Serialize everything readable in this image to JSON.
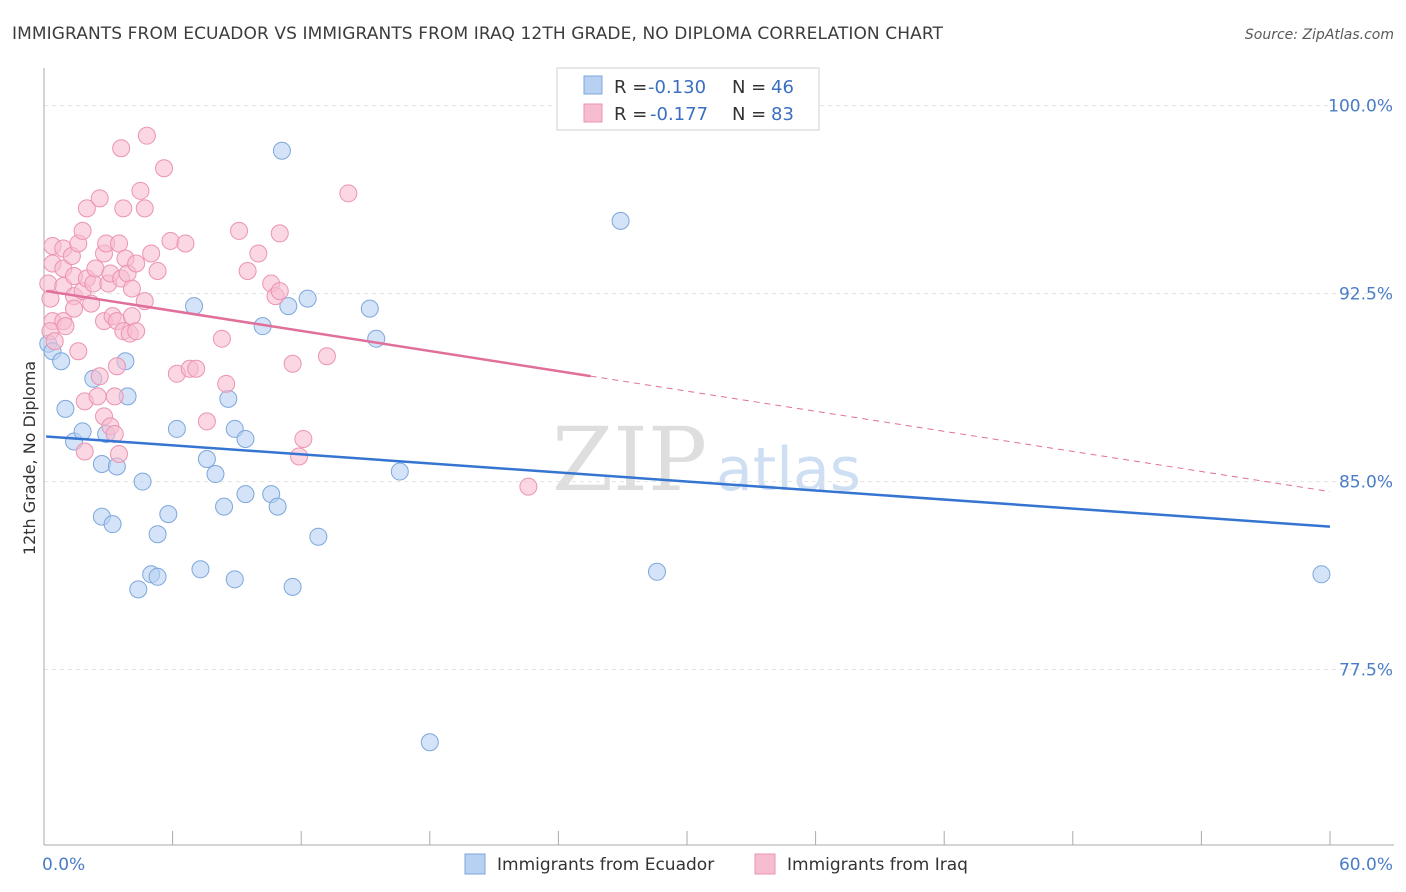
{
  "chart_data": {
    "type": "scatter",
    "title": "IMMIGRANTS FROM ECUADOR VS IMMIGRANTS FROM IRAQ 12TH GRADE, NO DIPLOMA CORRELATION CHART",
    "source": "Source: ZipAtlas.com",
    "ylabel": "12th Grade, No Diploma",
    "xlabel": "",
    "xlim": [
      0,
      60
    ],
    "ylim": [
      70.5,
      101.5
    ],
    "x_tick_labels": [
      {
        "value": 0,
        "label": "0.0%"
      },
      {
        "value": 60,
        "label": "60.0%"
      }
    ],
    "y_tick_labels": [
      {
        "value": 100,
        "label": "100.0%"
      },
      {
        "value": 92.5,
        "label": "92.5%"
      },
      {
        "value": 85,
        "label": "85.0%"
      },
      {
        "value": 77.5,
        "label": "77.5%"
      }
    ],
    "watermark": {
      "part1": "ZIP",
      "part2": "atlas"
    },
    "legend": {
      "r_label": "R =",
      "n_label": "N =",
      "entries": [
        {
          "r_value": "-0.130",
          "n_value": "46"
        },
        {
          "r_value": "-0.177",
          "n_value": "83"
        }
      ]
    },
    "series": [
      {
        "name": "Immigrants from Ecuador",
        "fill": "#b8d0f1",
        "stroke": "#7da7dd",
        "line_color": "#3575d1",
        "trend": {
          "x0": 0.1,
          "y0": 86.8,
          "x1": 60,
          "y1": 83.2,
          "dash_from": null
        },
        "points": [
          [
            0.2,
            90.5
          ],
          [
            0.4,
            90.2
          ],
          [
            0.8,
            89.8
          ],
          [
            1.0,
            87.9
          ],
          [
            1.4,
            86.6
          ],
          [
            1.8,
            87.0
          ],
          [
            2.3,
            89.1
          ],
          [
            2.9,
            86.9
          ],
          [
            2.7,
            85.7
          ],
          [
            3.4,
            85.6
          ],
          [
            3.8,
            89.8
          ],
          [
            3.9,
            88.4
          ],
          [
            2.7,
            83.6
          ],
          [
            3.2,
            83.3
          ],
          [
            4.6,
            85.0
          ],
          [
            5.3,
            82.9
          ],
          [
            5.8,
            83.7
          ],
          [
            4.4,
            80.7
          ],
          [
            5.0,
            81.3
          ],
          [
            5.3,
            81.2
          ],
          [
            6.2,
            87.1
          ],
          [
            7.0,
            92.0
          ],
          [
            7.3,
            81.5
          ],
          [
            7.6,
            85.9
          ],
          [
            8.0,
            85.3
          ],
          [
            8.4,
            84.0
          ],
          [
            8.6,
            88.3
          ],
          [
            8.9,
            87.1
          ],
          [
            8.9,
            81.1
          ],
          [
            9.4,
            84.5
          ],
          [
            9.4,
            86.7
          ],
          [
            10.2,
            91.2
          ],
          [
            10.6,
            84.5
          ],
          [
            10.9,
            84.0
          ],
          [
            11.1,
            98.2
          ],
          [
            11.4,
            92.0
          ],
          [
            11.6,
            80.8
          ],
          [
            12.3,
            92.3
          ],
          [
            12.8,
            82.8
          ],
          [
            15.2,
            91.9
          ],
          [
            15.5,
            90.7
          ],
          [
            16.6,
            85.4
          ],
          [
            18.0,
            74.6
          ],
          [
            26.9,
            95.4
          ],
          [
            28.6,
            81.4
          ],
          [
            59.6,
            81.3
          ]
        ]
      },
      {
        "name": "Immigrants from Iraq",
        "fill": "#f6bdd0",
        "stroke": "#ec93b2",
        "line_color": "#e0709a",
        "trend": {
          "x0": 0.1,
          "y0": 92.6,
          "x1": 60,
          "y1": 84.6,
          "dash_from": 25.5
        },
        "points": [
          [
            0.4,
            94.4
          ],
          [
            0.4,
            93.7
          ],
          [
            0.2,
            92.9
          ],
          [
            0.3,
            92.3
          ],
          [
            0.4,
            91.4
          ],
          [
            0.3,
            91.0
          ],
          [
            0.5,
            90.6
          ],
          [
            0.9,
            94.3
          ],
          [
            0.9,
            93.5
          ],
          [
            0.9,
            92.8
          ],
          [
            0.9,
            91.4
          ],
          [
            1.0,
            91.2
          ],
          [
            1.3,
            94.0
          ],
          [
            1.4,
            93.2
          ],
          [
            1.4,
            92.4
          ],
          [
            1.4,
            91.9
          ],
          [
            1.6,
            94.5
          ],
          [
            1.6,
            90.2
          ],
          [
            1.8,
            95.0
          ],
          [
            1.8,
            92.6
          ],
          [
            1.9,
            88.2
          ],
          [
            1.9,
            86.2
          ],
          [
            2.0,
            95.9
          ],
          [
            2.0,
            93.1
          ],
          [
            2.2,
            92.1
          ],
          [
            2.3,
            92.9
          ],
          [
            2.4,
            93.5
          ],
          [
            2.5,
            88.4
          ],
          [
            2.6,
            96.3
          ],
          [
            2.6,
            89.2
          ],
          [
            2.8,
            94.1
          ],
          [
            2.8,
            91.4
          ],
          [
            2.8,
            87.6
          ],
          [
            2.9,
            94.5
          ],
          [
            3.0,
            92.9
          ],
          [
            3.1,
            93.3
          ],
          [
            3.1,
            87.2
          ],
          [
            3.2,
            91.6
          ],
          [
            3.3,
            88.4
          ],
          [
            3.3,
            86.9
          ],
          [
            3.4,
            91.4
          ],
          [
            3.4,
            89.6
          ],
          [
            3.5,
            94.5
          ],
          [
            3.5,
            86.1
          ],
          [
            3.6,
            98.3
          ],
          [
            3.6,
            93.1
          ],
          [
            3.7,
            95.9
          ],
          [
            3.7,
            91.0
          ],
          [
            3.8,
            93.9
          ],
          [
            3.9,
            93.3
          ],
          [
            4.0,
            90.9
          ],
          [
            4.1,
            92.7
          ],
          [
            4.1,
            91.6
          ],
          [
            4.3,
            93.7
          ],
          [
            4.3,
            91.0
          ],
          [
            4.5,
            96.6
          ],
          [
            4.7,
            95.9
          ],
          [
            4.7,
            92.2
          ],
          [
            4.8,
            98.8
          ],
          [
            5.0,
            94.1
          ],
          [
            5.3,
            93.4
          ],
          [
            5.6,
            97.5
          ],
          [
            5.9,
            94.6
          ],
          [
            6.2,
            89.3
          ],
          [
            6.6,
            94.5
          ],
          [
            6.8,
            89.5
          ],
          [
            7.1,
            89.5
          ],
          [
            7.6,
            87.4
          ],
          [
            8.3,
            90.7
          ],
          [
            8.5,
            88.9
          ],
          [
            9.1,
            95.0
          ],
          [
            9.5,
            93.4
          ],
          [
            10.0,
            94.1
          ],
          [
            10.6,
            92.9
          ],
          [
            10.8,
            92.4
          ],
          [
            11.0,
            94.9
          ],
          [
            11.0,
            92.6
          ],
          [
            11.6,
            89.7
          ],
          [
            11.9,
            86.0
          ],
          [
            12.1,
            86.7
          ],
          [
            13.2,
            90.0
          ],
          [
            14.2,
            96.5
          ],
          [
            22.6,
            84.8
          ]
        ]
      }
    ]
  }
}
